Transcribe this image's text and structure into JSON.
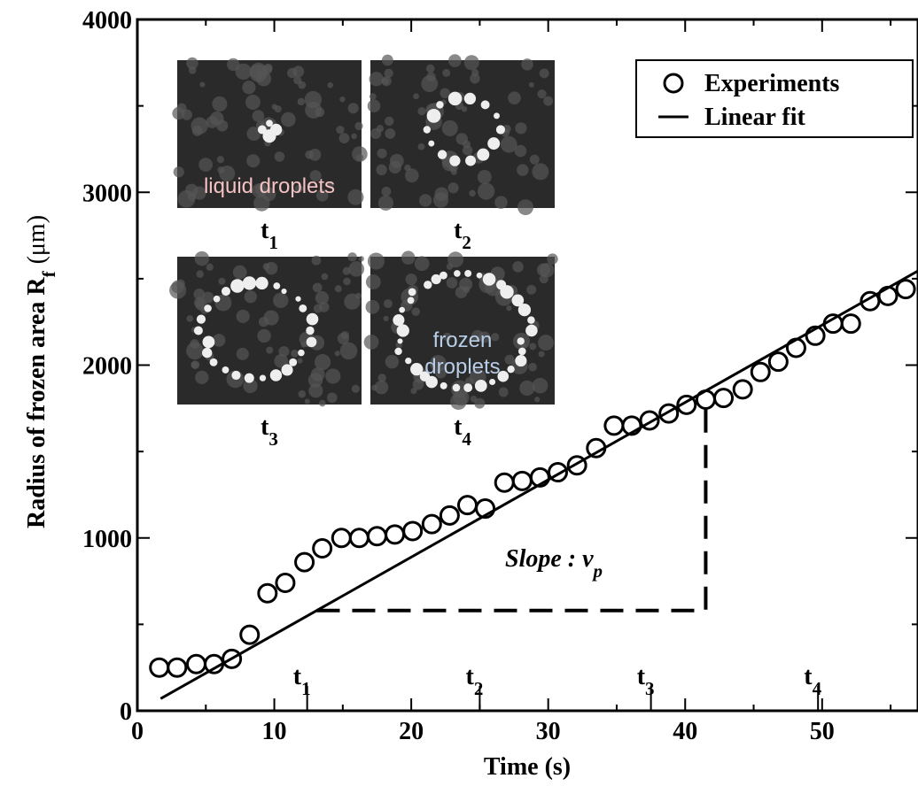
{
  "chart_data": {
    "type": "scatter",
    "xlabel": "Time (s)",
    "ylabel": {
      "text": "Radius of frozen area R",
      "sub": "f",
      "unit": "(μm)"
    },
    "xlim": [
      0,
      57
    ],
    "ylim": [
      0,
      4000
    ],
    "xticks": [
      0,
      10,
      20,
      30,
      40,
      50
    ],
    "yticks": [
      0,
      1000,
      2000,
      3000,
      4000
    ],
    "xminor": [
      5,
      15,
      25,
      35,
      45,
      55
    ],
    "yminor": [
      500,
      1500,
      2500,
      3500
    ],
    "series": [
      {
        "name": "Experiments",
        "style": "marker",
        "color": "#000000",
        "x": [
          1.6,
          2.9,
          4.3,
          5.6,
          6.9,
          8.2,
          9.5,
          10.8,
          12.2,
          13.5,
          14.9,
          16.2,
          17.5,
          18.8,
          20.1,
          21.5,
          22.8,
          24.1,
          25.4,
          26.8,
          28.1,
          29.4,
          30.7,
          32.1,
          33.5,
          34.8,
          36.1,
          37.4,
          38.8,
          40.1,
          41.5,
          42.8,
          44.2,
          45.5,
          46.8,
          48.1,
          49.5,
          50.8,
          52.1,
          53.5,
          54.8,
          56.1
        ],
        "values": [
          250,
          250,
          270,
          270,
          300,
          440,
          680,
          740,
          860,
          940,
          1000,
          1000,
          1010,
          1020,
          1040,
          1080,
          1130,
          1190,
          1170,
          1320,
          1330,
          1350,
          1380,
          1420,
          1520,
          1650,
          1650,
          1680,
          1720,
          1770,
          1800,
          1810,
          1860,
          1960,
          2020,
          2100,
          2170,
          2240,
          2240,
          2370,
          2400,
          2440
        ]
      },
      {
        "name": "Linear fit",
        "style": "line",
        "color": "#000000",
        "x": [
          1.7,
          57
        ],
        "values": [
          70,
          2545
        ]
      }
    ],
    "slope_guide": {
      "x": [
        13.1,
        41.5,
        41.5
      ],
      "values": [
        580,
        580,
        1830
      ]
    },
    "slope_label": {
      "text": "Slope : v",
      "sub": "p"
    },
    "time_markers": [
      {
        "label": "t",
        "sub": "1",
        "x": 12.4
      },
      {
        "label": "t",
        "sub": "2",
        "x": 25
      },
      {
        "label": "t",
        "sub": "3",
        "x": 37.5
      },
      {
        "label": "t",
        "sub": "4",
        "x": 49.7
      }
    ],
    "insets": [
      {
        "label": "t",
        "sub": "1",
        "caption": "liquid droplets"
      },
      {
        "label": "t",
        "sub": "2"
      },
      {
        "label": "t",
        "sub": "3"
      },
      {
        "label": "t",
        "sub": "4",
        "caption": "frozen droplets"
      }
    ],
    "legend": "upper right"
  }
}
